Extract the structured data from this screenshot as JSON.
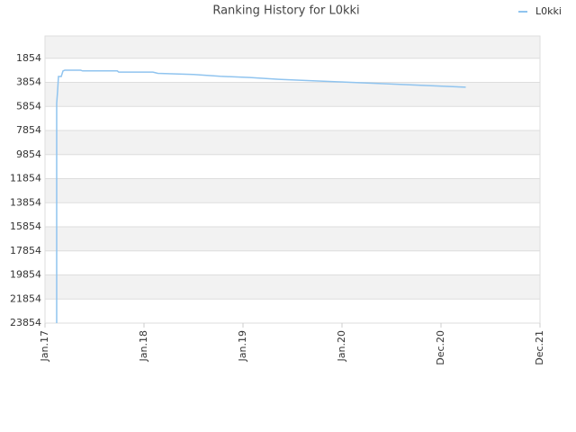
{
  "chart_data": {
    "type": "line",
    "title": "Ranking History for L0kki",
    "xlim": [
      0,
      5
    ],
    "xticks": [
      {
        "value": 0,
        "label": "Jan.17"
      },
      {
        "value": 1,
        "label": "Jan.18"
      },
      {
        "value": 2,
        "label": "Jan.19"
      },
      {
        "value": 3,
        "label": "Jan.20"
      },
      {
        "value": 4,
        "label": "Dec.20"
      },
      {
        "value": 5,
        "label": "Dec.21"
      }
    ],
    "ylim": [
      23854,
      0
    ],
    "yticks": [
      1854,
      3854,
      5854,
      7854,
      9854,
      11854,
      13854,
      15854,
      17854,
      19854,
      21854,
      23854
    ],
    "grid": true,
    "legend": "top-right",
    "series": [
      {
        "name": "L0kki",
        "color": "#90c4ef",
        "x": [
          0.118,
          0.118,
          0.127,
          0.136,
          0.164,
          0.182,
          0.2,
          0.36,
          0.38,
          0.73,
          0.745,
          1.09,
          1.14,
          1.5,
          1.77,
          2.07,
          2.36,
          2.65,
          2.95,
          3.23,
          3.53,
          3.82,
          4.09,
          4.25
        ],
        "values": [
          23854,
          5600,
          4600,
          3365,
          3365,
          2900,
          2841,
          2841,
          2900,
          2900,
          3000,
          3000,
          3100,
          3200,
          3350,
          3450,
          3600,
          3700,
          3800,
          3900,
          4000,
          4100,
          4200,
          4250
        ]
      }
    ]
  }
}
